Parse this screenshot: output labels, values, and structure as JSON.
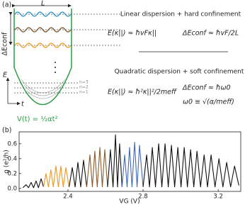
{
  "panel_a": {
    "label": "(a)",
    "length": "L",
    "gap": "ΔEconf",
    "linear_title": "Linear dispersion + hard confinement",
    "linear_dispersion": "E(κ||) ≈ ħvFκ||",
    "linear_gap": "ΔEconf ≈ ħvF/2L",
    "quadratic_title": "Quadratic dispersion + soft confinement",
    "quadratic_dispersion": "E(κ||) ≈ ħ²κ||²/2meff",
    "quadratic_gap": "ΔEconf ≈ ħω0",
    "omega": "ω0 ≡ √(α/meff)",
    "potential": "V(t) = ½αt²",
    "energy_axis": "E",
    "time_axis": "t",
    "levels": [
      "n=3",
      "n=2",
      "n=1"
    ]
  },
  "chart_data": {
    "type": "line",
    "label": "(b)",
    "y_label": "g (e²/h)",
    "x_label": "VG (V)",
    "xlim": [
      2.14,
      3.32
    ],
    "ylim": [
      -0.04,
      0.76
    ],
    "xticks": [
      2.4,
      2.8,
      3.2
    ],
    "yticks": [
      {
        "value": 0,
        "label": "0.0"
      },
      0.2,
      0.4,
      0.6
    ],
    "series": [
      {
        "color": "#111111",
        "x": [
          2.16,
          2.177,
          2.19,
          2.204,
          2.217,
          2.23,
          2.243,
          2.257,
          2.27
        ],
        "values": [
          0.01,
          0.05,
          0.01,
          0.08,
          0.01,
          0.1,
          0.01,
          0.13,
          0.02
        ]
      },
      {
        "color": "#f0961e",
        "x": [
          2.27,
          2.283,
          2.296,
          2.309,
          2.322,
          2.336,
          2.349,
          2.362,
          2.375,
          2.389,
          2.406
        ],
        "values": [
          0.02,
          0.2,
          0.02,
          0.25,
          0.02,
          0.3,
          0.02,
          0.3,
          0.02,
          0.28,
          0.02
        ]
      },
      {
        "color": "#111111",
        "x": [
          2.406,
          2.423,
          2.438,
          2.453,
          2.468,
          2.483,
          2.5
        ],
        "values": [
          0.02,
          0.28,
          0.02,
          0.35,
          0.02,
          0.38,
          0.02
        ]
      },
      {
        "color": "#8b5a2b",
        "x": [
          2.5,
          2.517,
          2.53,
          2.543,
          2.556,
          2.57,
          2.583,
          2.596,
          2.611
        ],
        "values": [
          0.02,
          0.45,
          0.02,
          0.5,
          0.02,
          0.55,
          0.02,
          0.52,
          0.02
        ]
      },
      {
        "color": "#111111",
        "x": [
          2.611,
          2.626,
          2.64,
          2.653,
          2.664,
          2.675,
          2.688
        ],
        "values": [
          0.02,
          0.52,
          0.02,
          0.72,
          0.02,
          0.6,
          0.02
        ]
      },
      {
        "color": "#4169b8",
        "x": [
          2.688,
          2.702,
          2.715,
          2.728,
          2.741,
          2.755,
          2.768,
          2.781,
          2.8
        ],
        "values": [
          0.02,
          0.45,
          0.02,
          0.55,
          0.02,
          0.62,
          0.02,
          0.58,
          0.02
        ]
      },
      {
        "color": "#111111",
        "x": [
          2.8,
          2.819,
          2.834,
          2.849,
          2.866,
          2.883,
          2.9,
          2.917,
          2.934,
          2.951,
          2.968,
          2.985,
          3.002,
          3.019,
          3.036,
          3.053,
          3.07,
          3.087,
          3.106,
          3.125,
          3.143,
          3.162,
          3.183,
          3.204,
          3.225,
          3.245,
          3.266,
          3.287,
          3.31
        ],
        "values": [
          0.02,
          0.45,
          0.02,
          0.55,
          0.02,
          0.6,
          0.02,
          0.6,
          0.02,
          0.58,
          0.02,
          0.55,
          0.02,
          0.55,
          0.02,
          0.52,
          0.02,
          0.5,
          0.02,
          0.45,
          0.02,
          0.45,
          0.02,
          0.4,
          0.02,
          0.35,
          0.02,
          0.3,
          0.04
        ]
      }
    ]
  }
}
